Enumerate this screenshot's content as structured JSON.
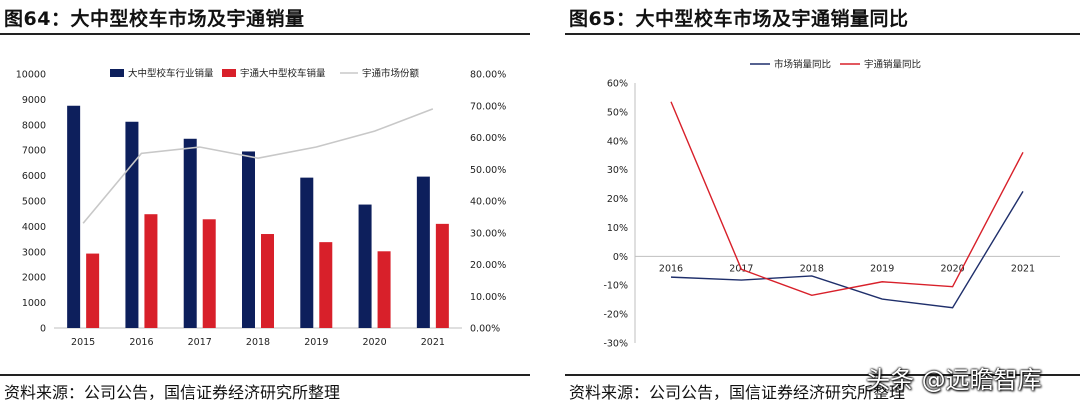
{
  "left": {
    "title": "图64：大中型校车市场及宇通销量",
    "source": "资料来源：公司公告，国信证券经济研究所整理"
  },
  "right": {
    "title": "图65：大中型校车市场及宇通销量同比",
    "source": "资料来源：公司公告，国信证券经济研究所整理"
  },
  "watermark": "头条 @远瞻智库",
  "colors": {
    "industry": "#0d1f5c",
    "yutong": "#d8202a",
    "share": "#c8c8c8",
    "market_yoy": "#1f2f6b",
    "yutong_yoy": "#d8202a"
  },
  "chart_data": [
    {
      "type": "bar",
      "title": "",
      "categories": [
        "2015",
        "2016",
        "2017",
        "2018",
        "2019",
        "2020",
        "2021"
      ],
      "series": [
        {
          "name": "大中型校车行业销量",
          "values": [
            8750,
            8120,
            7450,
            6950,
            5920,
            4860,
            5960
          ]
        },
        {
          "name": "宇通大中型校车销量",
          "values": [
            2930,
            4480,
            4280,
            3700,
            3380,
            3020,
            4100
          ]
        },
        {
          "name": "宇通市场份额",
          "type": "line",
          "axis": "right",
          "values": [
            33.0,
            55.0,
            57.0,
            53.5,
            57.0,
            62.0,
            69.0
          ]
        }
      ],
      "ylim": [
        0,
        10000
      ],
      "yticks": [
        "0",
        "1000",
        "2000",
        "3000",
        "4000",
        "5000",
        "6000",
        "7000",
        "8000",
        "9000",
        "10000"
      ],
      "y2lim": [
        0,
        80
      ],
      "y2ticks": [
        "0.00%",
        "10.00%",
        "20.00%",
        "30.00%",
        "40.00%",
        "50.00%",
        "60.00%",
        "70.00%",
        "80.00%"
      ],
      "legend": "top"
    },
    {
      "type": "line",
      "title": "",
      "categories": [
        "2016",
        "2017",
        "2018",
        "2019",
        "2020",
        "2021"
      ],
      "series": [
        {
          "name": "市场销量同比",
          "values": [
            -7.2,
            -8.2,
            -6.8,
            -14.8,
            -17.8,
            22.5
          ]
        },
        {
          "name": "宇通销量同比",
          "values": [
            53.5,
            -4.5,
            -13.5,
            -8.8,
            -10.5,
            36.0
          ]
        }
      ],
      "ylim": [
        -30,
        60
      ],
      "yticks": [
        "-30%",
        "-20%",
        "-10%",
        "0%",
        "10%",
        "20%",
        "30%",
        "40%",
        "50%",
        "60%"
      ],
      "legend": "top"
    }
  ]
}
